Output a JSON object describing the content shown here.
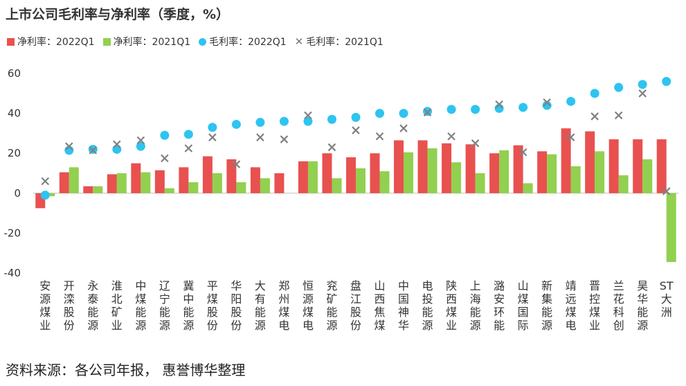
{
  "title": "上市公司毛利率与净利率（季度，%）",
  "source": "资料来源：各公司年报， 惠誉博华整理",
  "colors": {
    "net_2022": "#E8514F",
    "net_2021": "#92D050",
    "gross_2022": "#2EC4F0",
    "gross_2021": "#808080",
    "axis": "#BFBFBF"
  },
  "chart_data": {
    "type": "bar",
    "categories": [
      "安源煤业",
      "开滦股份",
      "永泰能源",
      "淮北矿业",
      "中煤能源",
      "辽宁能源",
      "冀中能源",
      "平煤股份",
      "华阳股份",
      "大有能源",
      "郑州煤电",
      "恒源煤电",
      "兖矿能源",
      "盘江股份",
      "山西焦煤",
      "中国神华",
      "电投能源",
      "陕西煤业",
      "上海能源",
      "潞安环能",
      "山煤国际",
      "新集能源",
      "靖远煤电",
      "晋控煤业",
      "兰花科创",
      "昊华能源",
      "ST大洲"
    ],
    "y_ticks": [
      "60",
      "40",
      "20",
      "0",
      "-20",
      "-40"
    ],
    "ylim": [
      -40,
      60
    ],
    "grid": false,
    "legend_position": "top",
    "series": [
      {
        "name": "净利率：2022Q1",
        "kind": "bar",
        "color_key": "net_2022",
        "values": [
          -7.5,
          10.5,
          3.5,
          9.5,
          15,
          11.5,
          13,
          18.5,
          17,
          13,
          10,
          16,
          20,
          18,
          20,
          26.5,
          26.5,
          25,
          24.5,
          20,
          24,
          21,
          32.5,
          31,
          27,
          27,
          27
        ]
      },
      {
        "name": "净利率：2021Q1",
        "kind": "bar",
        "color_key": "net_2021",
        "values": [
          -1.5,
          13,
          3.5,
          10,
          10.5,
          2.5,
          5.5,
          10,
          5.5,
          7.5,
          null,
          16,
          7.5,
          12.5,
          11,
          20.5,
          22.5,
          15.5,
          10,
          21.5,
          5,
          19.5,
          13.5,
          21,
          9,
          17,
          -34.5
        ]
      },
      {
        "name": "毛利率：2022Q1",
        "kind": "dot",
        "color_key": "gross_2022",
        "values": [
          -1,
          21.5,
          22,
          22,
          23.5,
          29,
          29.5,
          33,
          34.5,
          35.5,
          36,
          36,
          37,
          38,
          40,
          40,
          41,
          42,
          42,
          42.5,
          43,
          44,
          46,
          50,
          53,
          54.5,
          56
        ]
      },
      {
        "name": "毛利率：2021Q1",
        "kind": "cross",
        "color_key": "gross_2021",
        "values": [
          6,
          23.5,
          21.5,
          24.5,
          26.5,
          17.5,
          22.5,
          28,
          14.5,
          28,
          27,
          39,
          23,
          31.5,
          28.5,
          32.5,
          40.5,
          28.5,
          25,
          44.5,
          20.5,
          45.5,
          28,
          38.5,
          39,
          50,
          1
        ]
      }
    ]
  }
}
